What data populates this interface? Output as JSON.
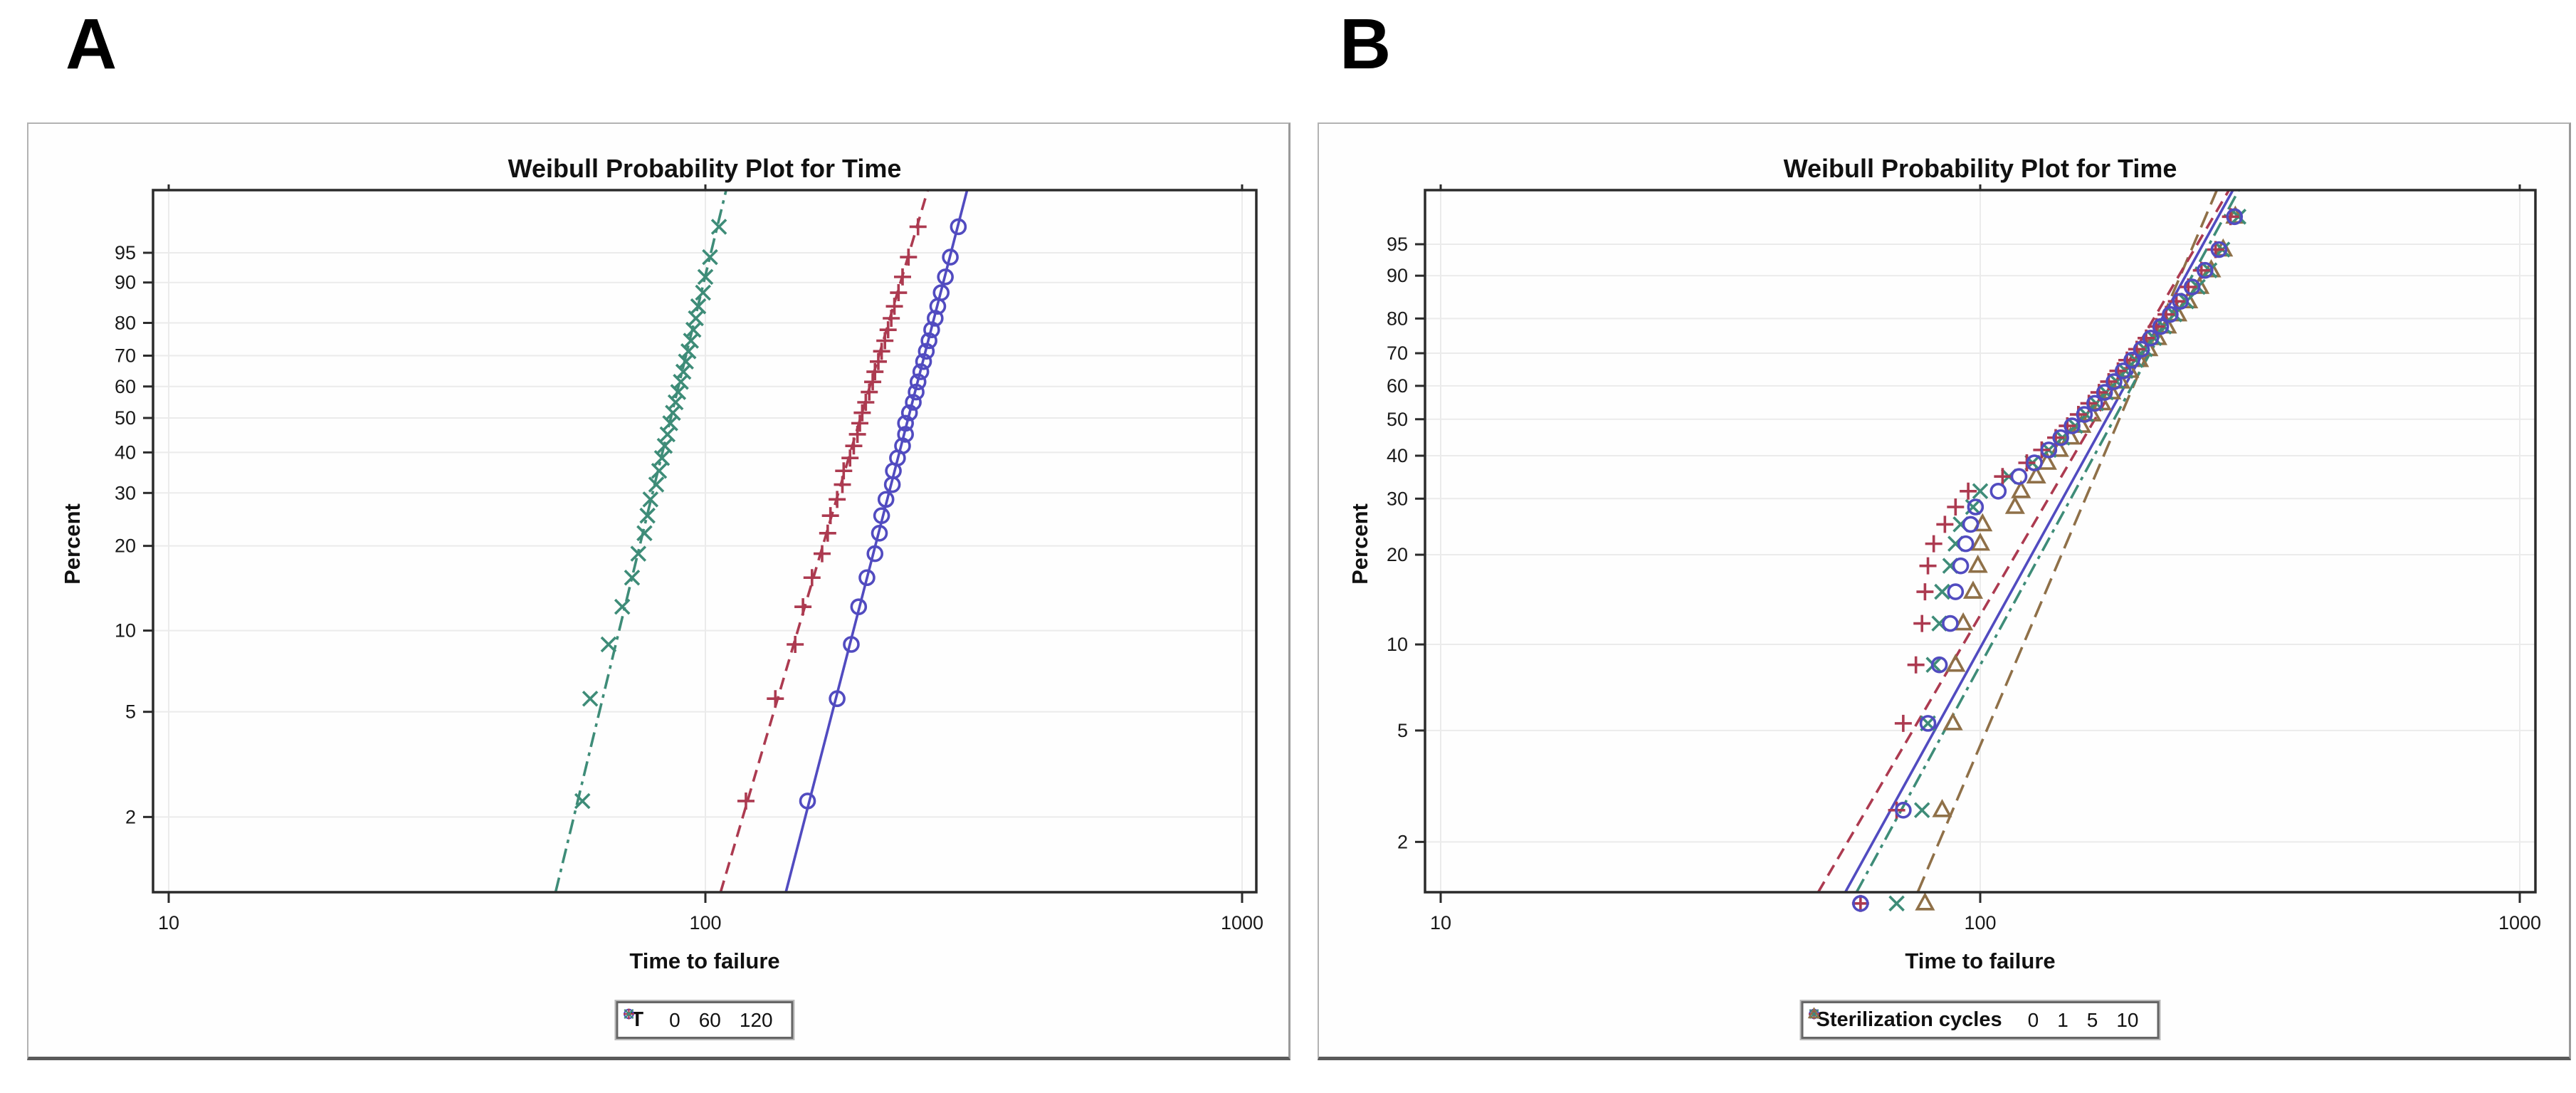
{
  "figure": {
    "panel_a_label": "A",
    "panel_b_label": "B"
  },
  "chart_data": [
    {
      "type": "scatter",
      "title": "Weibull Probability Plot for Time",
      "xlabel": "Time to failure",
      "ylabel": "Percent",
      "x_scale": "log10",
      "y_scale": "weibull-probability",
      "x_ticks": [
        10,
        100,
        1000
      ],
      "y_ticks": [
        2,
        5,
        10,
        20,
        30,
        40,
        50,
        60,
        70,
        80,
        90,
        95
      ],
      "xlim": [
        10,
        1000
      ],
      "grid": true,
      "legend_position": "bottom",
      "legend": {
        "title": "T",
        "entries": [
          {
            "label": "0",
            "marker": "circle",
            "color": "#514bc0"
          },
          {
            "label": "60",
            "marker": "plus",
            "color": "#ac3a50"
          },
          {
            "label": "120",
            "marker": "x",
            "color": "#3e8c78"
          }
        ]
      },
      "series": [
        {
          "name": "120",
          "marker": "x",
          "color": "#3e8c78",
          "line_style": "dashdot",
          "fit_line": {
            "eta": 90,
            "beta": 8.5
          },
          "percents": [
            2.3,
            5.6,
            8.9,
            12.2,
            15.5,
            18.8,
            22.1,
            25.3,
            28.6,
            31.9,
            35.2,
            38.5,
            41.8,
            45.1,
            48.4,
            51.6,
            54.9,
            58.2,
            61.5,
            64.8,
            68.1,
            71.4,
            74.7,
            78.0,
            81.3,
            84.5,
            87.8,
            91.1,
            94.4,
            97.7
          ],
          "times": [
            59,
            61,
            66,
            70,
            73,
            75,
            77,
            78,
            79,
            81,
            82,
            83,
            84,
            85,
            86,
            87,
            88,
            89,
            90,
            91,
            92,
            93,
            94,
            95,
            96,
            97,
            99,
            100,
            102,
            106
          ]
        },
        {
          "name": "60",
          "marker": "plus",
          "color": "#ac3a50",
          "line_style": "dash",
          "fit_line": {
            "eta": 205,
            "beta": 7
          },
          "percents": [
            2.3,
            5.6,
            8.9,
            12.2,
            15.5,
            18.8,
            22.1,
            25.3,
            28.6,
            31.9,
            35.2,
            38.5,
            41.8,
            45.1,
            48.4,
            51.6,
            54.9,
            58.2,
            61.5,
            64.8,
            68.1,
            71.4,
            74.7,
            78.0,
            81.3,
            84.5,
            87.8,
            91.1,
            94.4,
            97.7
          ],
          "times": [
            119,
            135,
            147,
            152,
            158,
            165,
            169,
            171,
            176,
            180,
            181,
            186,
            189,
            192,
            194,
            196,
            199,
            202,
            205,
            207,
            210,
            213,
            216,
            219,
            222,
            225,
            229,
            233,
            239,
            249
          ]
        },
        {
          "name": "0",
          "marker": "circle",
          "color": "#514bc0",
          "line_style": "solid",
          "fit_line": {
            "eta": 250,
            "beta": 8
          },
          "percents": [
            2.3,
            5.6,
            8.9,
            12.2,
            15.5,
            18.8,
            22.1,
            25.3,
            28.6,
            31.9,
            35.2,
            38.5,
            41.8,
            45.1,
            48.4,
            51.6,
            54.9,
            58.2,
            61.5,
            64.8,
            68.1,
            71.4,
            74.7,
            78.0,
            81.3,
            84.5,
            87.8,
            91.1,
            94.4,
            97.7
          ],
          "times": [
            155,
            176,
            187,
            193,
            200,
            207,
            211,
            213,
            217,
            223,
            224,
            228,
            233,
            236,
            236,
            240,
            244,
            247,
            249,
            252,
            255,
            258,
            261,
            264,
            268,
            271,
            275,
            280,
            286,
            296
          ]
        }
      ]
    },
    {
      "type": "scatter",
      "title": "Weibull Probability Plot for Time",
      "xlabel": "Time to failure",
      "ylabel": "Percent",
      "x_scale": "log10",
      "y_scale": "weibull-probability",
      "x_ticks": [
        10,
        100,
        1000
      ],
      "y_ticks": [
        2,
        5,
        10,
        20,
        30,
        40,
        50,
        60,
        70,
        80,
        90,
        95
      ],
      "xlim": [
        10,
        1000
      ],
      "grid": true,
      "legend_position": "bottom",
      "legend": {
        "title": "Sterilization cycles",
        "entries": [
          {
            "label": "0",
            "marker": "circle",
            "color": "#514bc0"
          },
          {
            "label": "1",
            "marker": "plus",
            "color": "#ac3a50"
          },
          {
            "label": "5",
            "marker": "x",
            "color": "#3e8c78"
          },
          {
            "label": "10",
            "marker": "triangle",
            "color": "#8f7048"
          }
        ]
      },
      "series": [
        {
          "name": "10",
          "marker": "triangle",
          "color": "#8f7048",
          "line_style": "longdash",
          "fit_line": {
            "eta": 196,
            "beta": 4.6
          },
          "percents": [
            1.2,
            2.6,
            5.3,
            8.5,
            11.8,
            15.1,
            18.4,
            21.7,
            25.0,
            28.3,
            31.6,
            34.9,
            38.2,
            41.5,
            44.8,
            48.1,
            51.4,
            54.7,
            58.0,
            61.3,
            64.6,
            67.9,
            71.2,
            74.5,
            77.8,
            81.1,
            84.4,
            87.7,
            91.0,
            94.3,
            97.7
          ],
          "times": [
            79,
            85,
            89,
            90,
            93,
            97,
            99,
            100,
            101,
            116,
            119,
            127,
            133,
            140,
            147,
            154,
            161,
            168,
            175,
            182,
            189,
            197,
            205,
            213,
            222,
            232,
            243,
            255,
            268,
            282,
            297
          ]
        },
        {
          "name": "5",
          "marker": "x",
          "color": "#3e8c78",
          "line_style": "dashdot",
          "fit_line": {
            "eta": 196,
            "beta": 3.6
          },
          "percents": [
            1.2,
            2.6,
            5.3,
            8.5,
            11.8,
            15.1,
            18.4,
            21.7,
            25.0,
            28.3,
            31.6,
            34.9,
            38.2,
            41.5,
            44.8,
            48.1,
            51.4,
            54.7,
            58.0,
            61.3,
            64.6,
            67.9,
            71.2,
            74.5,
            77.8,
            81.1,
            84.4,
            87.7,
            91.0,
            94.3,
            97.7
          ],
          "times": [
            70,
            78,
            80,
            82,
            84,
            85,
            88,
            90,
            92,
            97,
            100,
            113,
            125,
            134,
            142,
            150,
            157,
            164,
            171,
            179,
            186,
            194,
            202,
            210,
            219,
            229,
            241,
            253,
            266,
            281,
            301
          ]
        },
        {
          "name": "1",
          "marker": "plus",
          "color": "#ac3a50",
          "line_style": "dash",
          "fit_line": {
            "eta": 182,
            "beta": 3.35
          },
          "percents": [
            1.2,
            2.6,
            5.3,
            8.5,
            11.8,
            15.1,
            18.4,
            21.7,
            25.0,
            28.3,
            31.6,
            34.9,
            38.2,
            41.5,
            44.8,
            48.1,
            51.4,
            54.7,
            58.0,
            61.3,
            64.6,
            67.9,
            71.2,
            74.5,
            77.8,
            81.1,
            84.4,
            87.7,
            91.0,
            94.3,
            97.7
          ],
          "times": [
            60,
            70,
            72,
            76,
            78,
            79,
            80,
            82,
            86,
            90,
            95,
            110,
            122,
            130,
            138,
            145,
            152,
            159,
            166,
            173,
            180,
            187,
            195,
            203,
            212,
            221,
            231,
            243,
            257,
            273,
            291
          ]
        },
        {
          "name": "0",
          "marker": "circle",
          "color": "#514bc0",
          "line_style": "solid",
          "fit_line": {
            "eta": 190,
            "beta": 3.55
          },
          "percents": [
            1.2,
            2.6,
            5.3,
            8.5,
            11.8,
            15.1,
            18.4,
            21.7,
            25.0,
            28.3,
            31.6,
            34.9,
            38.2,
            41.5,
            44.8,
            48.1,
            51.4,
            54.7,
            58.0,
            61.3,
            64.6,
            67.9,
            71.2,
            74.5,
            77.8,
            81.1,
            84.4,
            87.7,
            91.0,
            94.3,
            97.7
          ],
          "times": [
            60,
            72,
            80,
            84,
            88,
            90,
            92,
            94,
            96,
            98,
            108,
            118,
            126,
            134,
            141,
            148,
            156,
            163,
            170,
            177,
            184,
            191,
            199,
            207,
            216,
            225,
            235,
            247,
            261,
            277,
            296
          ]
        }
      ]
    }
  ],
  "style": {
    "grid_color": "#ebebeb",
    "frame_color": "#2b2b2b",
    "tick_text_color": "#1a1a1a",
    "background": "#ffffff"
  }
}
